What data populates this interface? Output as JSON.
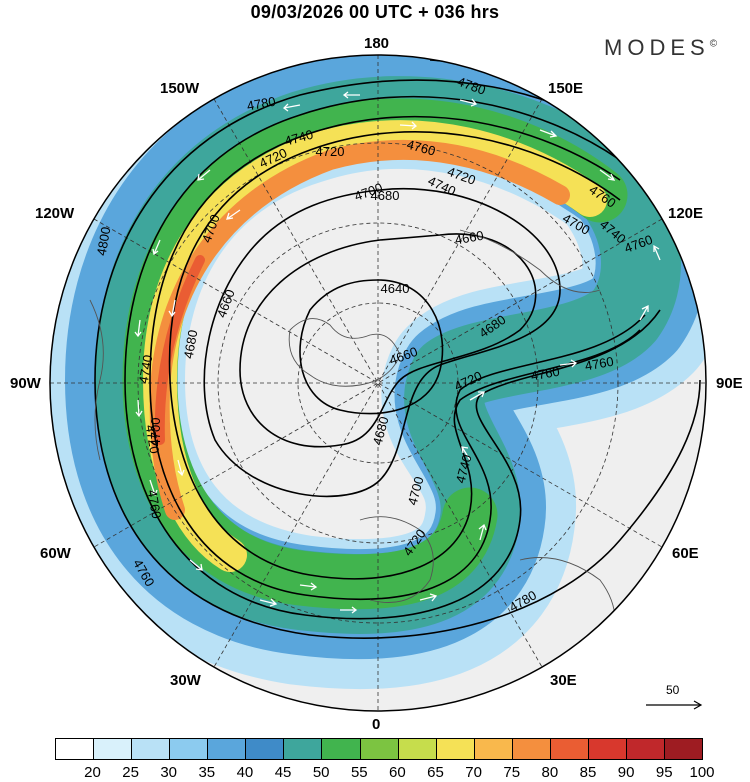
{
  "title": "09/03/2026  00 UTC  + 036 hrs",
  "logo": "MODES",
  "logo_mark": "©",
  "longitude_labels": {
    "n180": "180",
    "w150": "150W",
    "e150": "150E",
    "w120": "120W",
    "e120": "120E",
    "w90": "90W",
    "e90": "90E",
    "w60": "60W",
    "e60": "60E",
    "w30": "30W",
    "e30": "30E",
    "s0": "0"
  },
  "contour_labels": [
    "4800",
    "4780",
    "4780",
    "4760",
    "4760",
    "4760",
    "4760",
    "4760",
    "4760",
    "4740",
    "4740",
    "4740",
    "4740",
    "4740",
    "4720",
    "4720",
    "4720",
    "4720",
    "4720",
    "4720",
    "4700",
    "4700",
    "4700",
    "4700",
    "4700",
    "4680",
    "4680",
    "4680",
    "4680",
    "4660",
    "4660",
    "4660",
    "4640",
    "4780",
    "4760"
  ],
  "reference_vector": {
    "label": "50",
    "value": 50
  },
  "colorbar": {
    "ticks": [
      "20",
      "25",
      "30",
      "35",
      "40",
      "45",
      "50",
      "55",
      "60",
      "65",
      "70",
      "75",
      "80",
      "85",
      "90",
      "95",
      "100"
    ],
    "colors": [
      "#ffffff",
      "#d9f1fb",
      "#b9e1f6",
      "#8ccbef",
      "#5aa6dc",
      "#3f8bc8",
      "#3ea69c",
      "#41b44e",
      "#7cc441",
      "#c6dd4c",
      "#f5e156",
      "#f9b84c",
      "#f48f3e",
      "#ea5d33",
      "#d8382d",
      "#c0282b",
      "#9e1c22"
    ]
  },
  "jet_colors": {
    "outer": "#b9e1f6",
    "mid": "#5aa6dc",
    "inner": "#3ea69c",
    "green": "#41b44e",
    "yellow": "#f5e156",
    "orange": "#f48f3e",
    "red": "#ea5d33"
  }
}
